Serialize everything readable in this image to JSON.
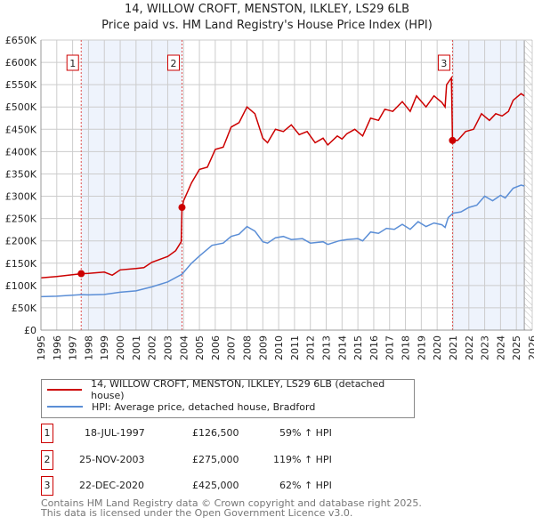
{
  "title": "14, WILLOW CROFT, MENSTON, ILKLEY, LS29 6LB",
  "subtitle": "Price paid vs. HM Land Registry's House Price Index (HPI)",
  "chart_data": {
    "type": "line",
    "title": "14, WILLOW CROFT, MENSTON, ILKLEY, LS29 6LB",
    "xlim": [
      1995,
      2026
    ],
    "ylim": [
      0,
      650000
    ],
    "x_ticks": [
      "1995",
      "1996",
      "1997",
      "1998",
      "1999",
      "2000",
      "2001",
      "2002",
      "2003",
      "2004",
      "2005",
      "2006",
      "2007",
      "2008",
      "2009",
      "2010",
      "2011",
      "2012",
      "2013",
      "2014",
      "2015",
      "2016",
      "2017",
      "2018",
      "2019",
      "2020",
      "2021",
      "2022",
      "2023",
      "2024",
      "2025",
      "2026"
    ],
    "y_ticks": [
      {
        "v": 0,
        "label": "£0"
      },
      {
        "v": 50000,
        "label": "£50K"
      },
      {
        "v": 100000,
        "label": "£100K"
      },
      {
        "v": 150000,
        "label": "£150K"
      },
      {
        "v": 200000,
        "label": "£200K"
      },
      {
        "v": 250000,
        "label": "£250K"
      },
      {
        "v": 300000,
        "label": "£300K"
      },
      {
        "v": 350000,
        "label": "£350K"
      },
      {
        "v": 400000,
        "label": "£400K"
      },
      {
        "v": 450000,
        "label": "£450K"
      },
      {
        "v": 500000,
        "label": "£500K"
      },
      {
        "v": 550000,
        "label": "£550K"
      },
      {
        "v": 600000,
        "label": "£600K"
      },
      {
        "v": 650000,
        "label": "£650K"
      }
    ],
    "grid": true,
    "series": [
      {
        "name": "14, WILLOW CROFT, MENSTON, ILKLEY, LS29 6LB (detached house)",
        "color": "#cc0000",
        "x": [
          1995,
          1996,
          1997.54,
          1998,
          1999,
          1999.5,
          2000,
          2001,
          2001.5,
          2002,
          2003,
          2003.5,
          2003.85,
          2003.9,
          2004,
          2004.5,
          2005,
          2005.5,
          2006,
          2006.5,
          2007,
          2007.5,
          2008,
          2008.5,
          2009,
          2009.3,
          2009.8,
          2010.3,
          2010.8,
          2011.3,
          2011.8,
          2012.3,
          2012.8,
          2013.1,
          2013.7,
          2014,
          2014.3,
          2014.8,
          2015.3,
          2015.8,
          2016.3,
          2016.7,
          2017.2,
          2017.8,
          2018.3,
          2018.7,
          2019.3,
          2019.8,
          2020.3,
          2020.5,
          2020.6,
          2020.9,
          2020.97,
          2021.3,
          2021.8,
          2022.3,
          2022.8,
          2023.3,
          2023.7,
          2024.1,
          2024.5,
          2024.8,
          2025.3,
          2025.5
        ],
        "y": [
          117000,
          120000,
          126500,
          127000,
          130000,
          123000,
          135000,
          138000,
          140000,
          152000,
          165000,
          178000,
          198000,
          275000,
          290000,
          330000,
          360000,
          365000,
          405000,
          410000,
          455000,
          465000,
          500000,
          485000,
          430000,
          420000,
          450000,
          445000,
          460000,
          438000,
          445000,
          420000,
          430000,
          415000,
          435000,
          428000,
          440000,
          450000,
          435000,
          475000,
          470000,
          495000,
          490000,
          512000,
          490000,
          525000,
          500000,
          525000,
          510000,
          500000,
          550000,
          565000,
          425000,
          425000,
          445000,
          450000,
          485000,
          470000,
          485000,
          480000,
          490000,
          515000,
          530000,
          525000
        ]
      },
      {
        "name": "HPI: Average price, detached house, Bradford",
        "color": "#5b8ed6",
        "x": [
          1995,
          1996,
          1997.54,
          1998,
          1999,
          2000,
          2001,
          2002,
          2003,
          2003.9,
          2004.5,
          2005,
          2005.8,
          2006.5,
          2007,
          2007.5,
          2008,
          2008.5,
          2009,
          2009.3,
          2009.8,
          2010.3,
          2010.8,
          2011.5,
          2012,
          2012.8,
          2013.1,
          2013.8,
          2014.3,
          2015,
          2015.3,
          2015.8,
          2016.3,
          2016.8,
          2017.3,
          2017.8,
          2018.3,
          2018.8,
          2019.3,
          2019.8,
          2020.3,
          2020.5,
          2020.7,
          2021,
          2021.5,
          2022,
          2022.5,
          2023,
          2023.5,
          2024,
          2024.3,
          2024.8,
          2025.3,
          2025.5
        ],
        "y": [
          75000,
          76000,
          79500,
          79000,
          80000,
          85000,
          88000,
          97000,
          108000,
          125500,
          150000,
          166000,
          190000,
          195000,
          210000,
          215000,
          232000,
          222000,
          198000,
          195000,
          207000,
          210000,
          203000,
          205000,
          195000,
          198000,
          192000,
          200000,
          203000,
          205000,
          200000,
          220000,
          217000,
          228000,
          226000,
          237000,
          226000,
          243000,
          232000,
          240000,
          236000,
          230000,
          252000,
          262000,
          265000,
          275000,
          280000,
          300000,
          290000,
          302000,
          296000,
          318000,
          325000,
          323000
        ]
      }
    ],
    "annotations": [
      {
        "label": "1",
        "x": 1997.54,
        "y": 126500
      },
      {
        "label": "2",
        "x": 2003.9,
        "y": 275000
      },
      {
        "label": "3",
        "x": 2020.97,
        "y": 425000
      }
    ],
    "legend": "bottom"
  },
  "legend": [
    {
      "label": "14, WILLOW CROFT, MENSTON, ILKLEY, LS29 6LB (detached house)",
      "color": "#cc0000"
    },
    {
      "label": "HPI: Average price, detached house, Bradford",
      "color": "#5b8ed6"
    }
  ],
  "sales": [
    {
      "num": "1",
      "date": "18-JUL-1997",
      "price": "£126,500",
      "hpi": "59% ↑ HPI"
    },
    {
      "num": "2",
      "date": "25-NOV-2003",
      "price": "£275,000",
      "hpi": "119% ↑ HPI"
    },
    {
      "num": "3",
      "date": "22-DEC-2020",
      "price": "£425,000",
      "hpi": "62% ↑ HPI"
    }
  ],
  "footer": {
    "line1": "Contains HM Land Registry data © Crown copyright and database right 2025.",
    "line2": "This data is licensed under the Open Government Licence v3.0."
  }
}
